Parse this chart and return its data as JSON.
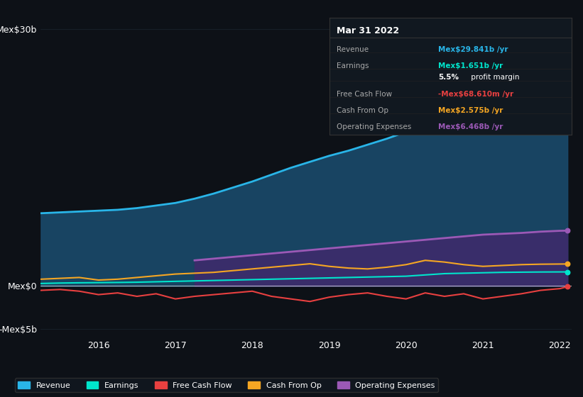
{
  "background_color": "#0d1117",
  "plot_bg_color": "#0d1117",
  "years": [
    2015.25,
    2015.5,
    2015.75,
    2016.0,
    2016.25,
    2016.5,
    2016.75,
    2017.0,
    2017.25,
    2017.5,
    2017.75,
    2018.0,
    2018.25,
    2018.5,
    2018.75,
    2019.0,
    2019.25,
    2019.5,
    2019.75,
    2020.0,
    2020.25,
    2020.5,
    2020.75,
    2021.0,
    2021.25,
    2021.5,
    2021.75,
    2022.0,
    2022.1
  ],
  "revenue": [
    8.5,
    8.6,
    8.7,
    8.8,
    8.9,
    9.1,
    9.4,
    9.7,
    10.2,
    10.8,
    11.5,
    12.2,
    13.0,
    13.8,
    14.5,
    15.2,
    15.8,
    16.5,
    17.2,
    18.0,
    19.5,
    21.0,
    22.5,
    24.0,
    25.5,
    27.0,
    28.2,
    29.5,
    29.841
  ],
  "earnings": [
    0.3,
    0.35,
    0.38,
    0.4,
    0.42,
    0.45,
    0.5,
    0.55,
    0.6,
    0.65,
    0.7,
    0.75,
    0.8,
    0.85,
    0.9,
    0.95,
    1.0,
    1.05,
    1.1,
    1.15,
    1.3,
    1.45,
    1.5,
    1.55,
    1.6,
    1.62,
    1.64,
    1.65,
    1.651
  ],
  "free_cash_flow": [
    -0.5,
    -0.4,
    -0.6,
    -1.0,
    -0.8,
    -1.2,
    -0.9,
    -1.5,
    -1.2,
    -1.0,
    -0.8,
    -0.6,
    -1.2,
    -1.5,
    -1.8,
    -1.3,
    -1.0,
    -0.8,
    -1.2,
    -1.5,
    -0.8,
    -1.2,
    -0.9,
    -1.5,
    -1.2,
    -0.9,
    -0.5,
    -0.3,
    -0.069
  ],
  "cash_from_op": [
    0.8,
    0.9,
    1.0,
    0.7,
    0.8,
    1.0,
    1.2,
    1.4,
    1.5,
    1.6,
    1.8,
    2.0,
    2.2,
    2.4,
    2.6,
    2.3,
    2.1,
    2.0,
    2.2,
    2.5,
    3.0,
    2.8,
    2.5,
    2.3,
    2.4,
    2.5,
    2.55,
    2.57,
    2.575
  ],
  "operating_expenses": [
    0.0,
    0.0,
    0.0,
    0.0,
    0.0,
    0.0,
    0.0,
    0.0,
    3.0,
    3.2,
    3.4,
    3.6,
    3.8,
    4.0,
    4.2,
    4.4,
    4.6,
    4.8,
    5.0,
    5.2,
    5.4,
    5.6,
    5.8,
    6.0,
    6.1,
    6.2,
    6.35,
    6.45,
    6.468
  ],
  "revenue_color": "#29b5e8",
  "earnings_color": "#00e5cc",
  "free_cash_flow_color": "#e84040",
  "cash_from_op_color": "#f5a623",
  "operating_expenses_color": "#9b59b6",
  "revenue_fill": "#1a4a6b",
  "operating_expenses_fill": "#3d2b6b",
  "ylim": [
    -6,
    32
  ],
  "yticks": [
    -5,
    0,
    30
  ],
  "ytick_labels": [
    "-Mex$5b",
    "Mex$0",
    "Mex$30b"
  ],
  "xtick_positions": [
    2016,
    2017,
    2018,
    2019,
    2020,
    2021,
    2022
  ],
  "xtick_labels": [
    "2016",
    "2017",
    "2018",
    "2019",
    "2020",
    "2021",
    "2022"
  ],
  "info_box": {
    "title": "Mar 31 2022",
    "rows": [
      {
        "label": "Revenue",
        "value": "Mex$29.841b /yr",
        "value_color": "#29b5e8"
      },
      {
        "label": "Earnings",
        "value": "Mex$1.651b /yr",
        "value_color": "#00e5cc"
      },
      {
        "label": "",
        "value": "5.5% profit margin",
        "value_color": "#ffffff",
        "bold_part": "5.5%"
      },
      {
        "label": "Free Cash Flow",
        "value": "-Mex$68.610m /yr",
        "value_color": "#e84040"
      },
      {
        "label": "Cash From Op",
        "value": "Mex$2.575b /yr",
        "value_color": "#f5a623"
      },
      {
        "label": "Operating Expenses",
        "value": "Mex$6.468b /yr",
        "value_color": "#9b59b6"
      }
    ]
  },
  "legend": [
    {
      "label": "Revenue",
      "color": "#29b5e8"
    },
    {
      "label": "Earnings",
      "color": "#00e5cc"
    },
    {
      "label": "Free Cash Flow",
      "color": "#e84040"
    },
    {
      "label": "Cash From Op",
      "color": "#f5a623"
    },
    {
      "label": "Operating Expenses",
      "color": "#9b59b6"
    }
  ]
}
